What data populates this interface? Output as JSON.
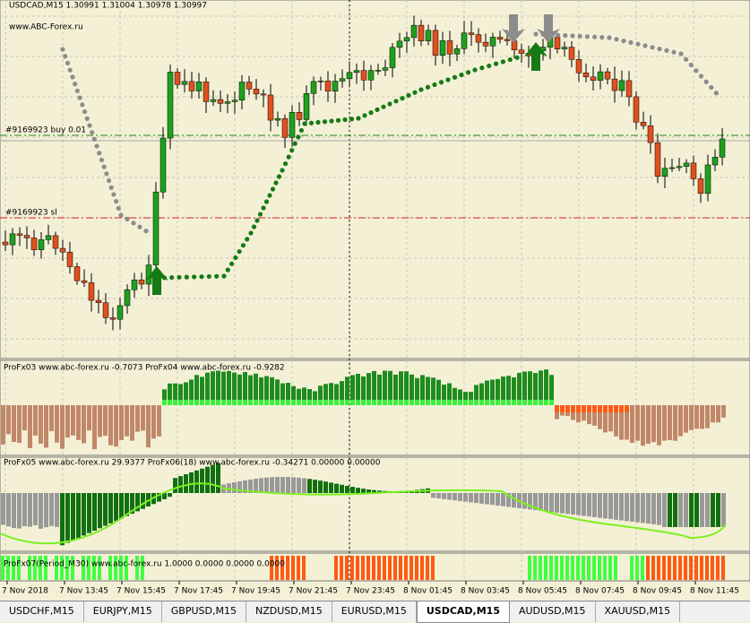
{
  "header": {
    "symbol": "USDCAD,M15  1.30991 1.31004 1.30978 1.30997",
    "site": "www.ABC-Forex.ru"
  },
  "orders": {
    "buy": "#9169923 buy 0.01",
    "sl": "#9169923 sl"
  },
  "panels": {
    "p1": "ProFx03 www.abc-forex.ru -0.7073  ProFx04 www.abc-forex.ru -0.9282",
    "p2": "ProFx05 www.abc-forex.ru 29.9377  ProFx06(18) www.abc-forex.ru -0.34271 0.00000 0.00000",
    "p3": "ProFx07(Period_M30) www.abc-forex.ru 1.0000 0.0000 0.0000 0.0000"
  },
  "time_axis": [
    "7 Nov 2018",
    "7 Nov 13:45",
    "7 Nov 15:45",
    "7 Nov 17:45",
    "7 Nov 19:45",
    "7 Nov 21:45",
    "7 Nov 23:45",
    "8 Nov 01:45",
    "8 Nov 03:45",
    "8 Nov 05:45",
    "8 Nov 07:45",
    "8 Nov 09:45",
    "8 Nov 11:45"
  ],
  "tabs": [
    "USDCHF,M15",
    "EURJPY,M15",
    "GBPUSD,M15",
    "NZDUSD,M15",
    "EURUSD,M15",
    "USDCAD,M15",
    "AUDUSD,M15",
    "XAUUSD,M15"
  ],
  "active_tab": 5
}
